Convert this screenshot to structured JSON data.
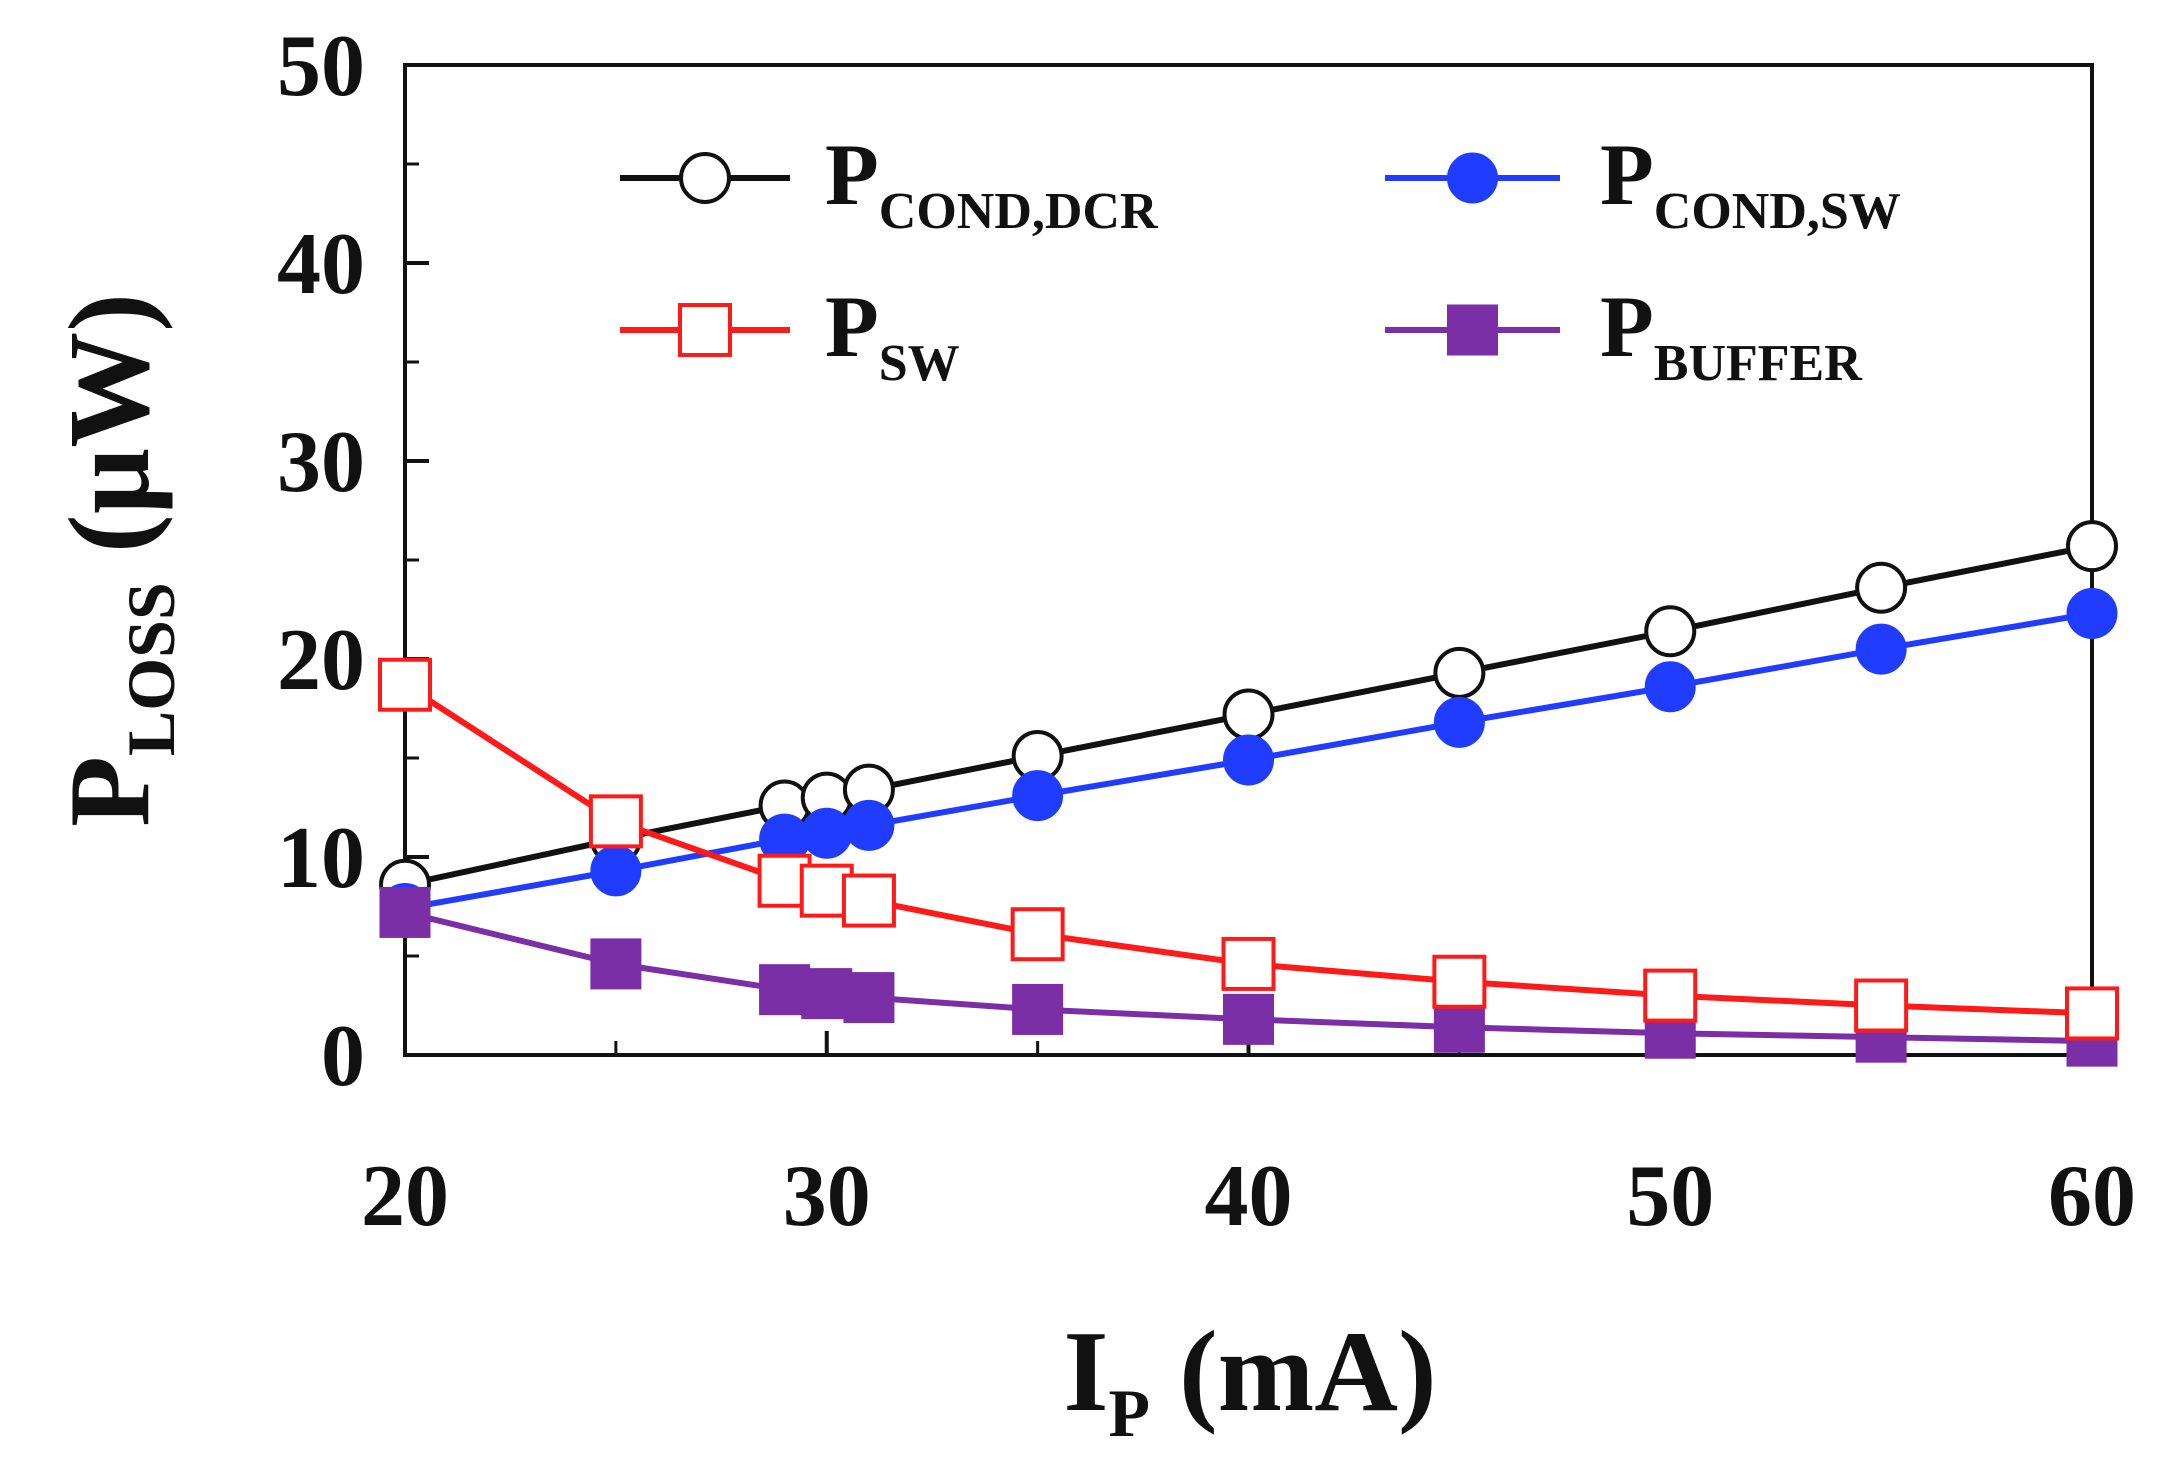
{
  "chart_data": {
    "type": "line",
    "title": "",
    "xlabel": {
      "main": "I",
      "sub": "P",
      "unit": "(mA)"
    },
    "ylabel": {
      "main": "P",
      "sub": "LOSS",
      "unit": "(µW)"
    },
    "xlim": [
      20,
      60
    ],
    "ylim": [
      0,
      50
    ],
    "xticks": [
      20,
      30,
      40,
      50,
      60
    ],
    "yticks": [
      0,
      10,
      20,
      30,
      40,
      50
    ],
    "grid": false,
    "legend_position": "top",
    "series": [
      {
        "name": "P_COND,DCR",
        "label_main": "P",
        "label_sub": "COND,DCR",
        "color": "#111111",
        "marker": "circle-open",
        "x": [
          20,
          25,
          29,
          30,
          31,
          35,
          40,
          45,
          50,
          55,
          60
        ],
        "y": [
          8.6,
          10.9,
          12.6,
          13.0,
          13.4,
          15.1,
          17.2,
          19.3,
          21.4,
          23.6,
          25.7
        ]
      },
      {
        "name": "P_COND,SW",
        "label_main": "P",
        "label_sub": "COND,SW",
        "color": "#1f3cff",
        "marker": "circle-filled",
        "x": [
          20,
          25,
          29,
          30,
          31,
          35,
          40,
          45,
          50,
          55,
          60
        ],
        "y": [
          7.4,
          9.3,
          10.9,
          11.2,
          11.6,
          13.1,
          14.9,
          16.8,
          18.6,
          20.5,
          22.3
        ]
      },
      {
        "name": "P_SW",
        "label_main": "P",
        "label_sub": "SW",
        "color": "#ff1a1a",
        "marker": "square-open",
        "x": [
          20,
          25,
          29,
          30,
          31,
          35,
          40,
          45,
          50,
          55,
          60
        ],
        "y": [
          18.7,
          11.8,
          8.8,
          8.3,
          7.8,
          6.1,
          4.6,
          3.7,
          3.0,
          2.5,
          2.1
        ]
      },
      {
        "name": "P_BUFFER",
        "label_main": "P",
        "label_sub": "BUFFER",
        "color": "#7b2fa6",
        "marker": "square-filled",
        "x": [
          20,
          25,
          29,
          30,
          31,
          35,
          40,
          45,
          50,
          55,
          60
        ],
        "y": [
          7.2,
          4.6,
          3.3,
          3.1,
          2.9,
          2.3,
          1.8,
          1.4,
          1.1,
          0.9,
          0.7
        ]
      }
    ]
  }
}
